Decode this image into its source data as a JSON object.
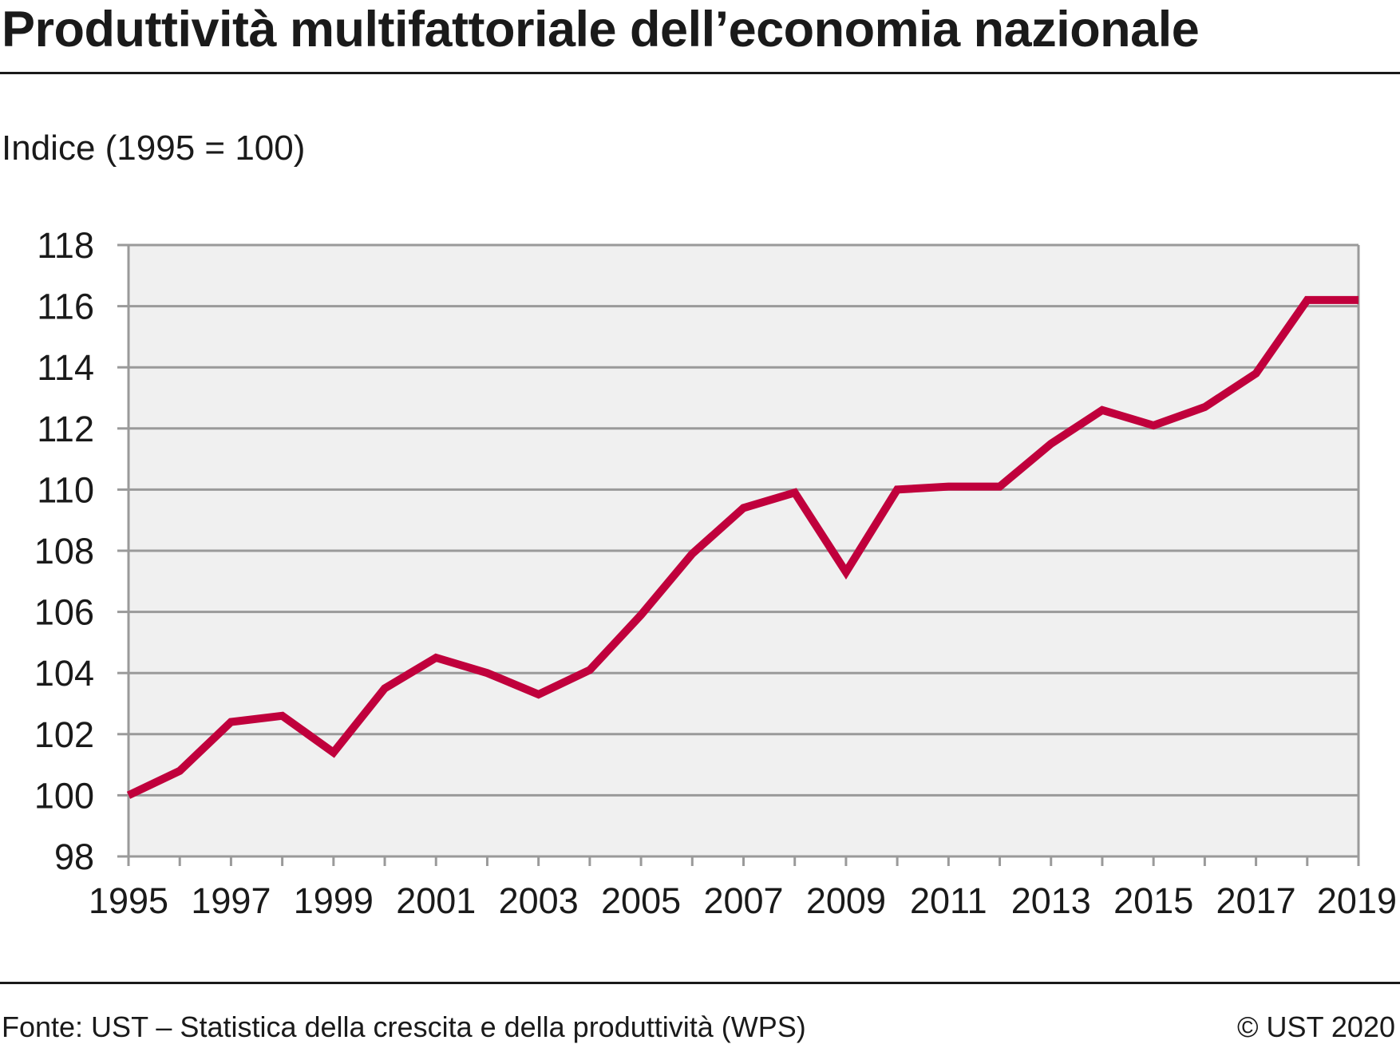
{
  "title": "Produttività multifattoriale dell’economia nazionale",
  "unit_label": "Indice (1995 = 100)",
  "source": "Fonte: UST – Statistica della crescita e della produttività (WPS)",
  "copyright": "© UST 2020",
  "colors": {
    "line": "#c0003c",
    "plot_background": "#f0f0f0",
    "grid": "#9a9a9a",
    "rule": "#1a1a1a"
  },
  "chart_data": {
    "type": "line",
    "ylabel": "Indice (1995 = 100)",
    "xlim": [
      1995,
      2019
    ],
    "ylim": [
      98,
      118
    ],
    "y_ticks": [
      98,
      100,
      102,
      104,
      106,
      108,
      110,
      112,
      114,
      116,
      118
    ],
    "x_tick_labels": [
      1995,
      1997,
      1999,
      2001,
      2003,
      2005,
      2007,
      2009,
      2011,
      2013,
      2015,
      2017,
      2019
    ],
    "x_minor_ticks": [
      1995,
      1996,
      1997,
      1998,
      1999,
      2000,
      2001,
      2002,
      2003,
      2004,
      2005,
      2006,
      2007,
      2008,
      2009,
      2010,
      2011,
      2012,
      2013,
      2014,
      2015,
      2016,
      2017,
      2018,
      2019
    ],
    "grid": true,
    "legend": "none",
    "series": [
      {
        "x": [
          1995,
          1996,
          1997,
          1998,
          1999,
          2000,
          2001,
          2002,
          2003,
          2004,
          2005,
          2006,
          2007,
          2008,
          2009,
          2010,
          2011,
          2012,
          2013,
          2014,
          2015,
          2016,
          2017,
          2018,
          2019
        ],
        "values": [
          100.0,
          100.8,
          102.4,
          102.6,
          101.4,
          103.5,
          104.5,
          104.0,
          103.3,
          104.1,
          105.9,
          107.9,
          109.4,
          109.9,
          107.3,
          110.0,
          110.1,
          110.1,
          111.5,
          112.6,
          112.1,
          112.7,
          113.8,
          116.2,
          116.2
        ]
      }
    ]
  }
}
